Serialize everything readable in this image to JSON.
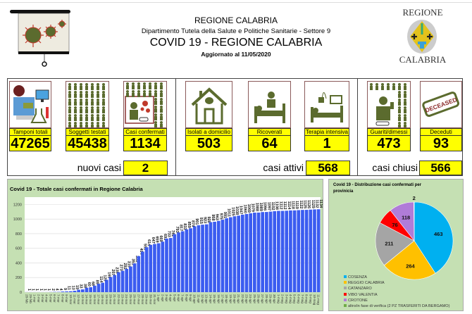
{
  "header": {
    "region": "REGIONE CALABRIA",
    "department": "Dipartimento Tutela della Salute e Politiche Sanitarie - Settore 9",
    "title": "COVID 19 - REGIONE CALABRIA",
    "updated": "Aggiornato al  11/05/2020",
    "logo_top": "REGIONE",
    "logo_bottom": "CALABRIA"
  },
  "colors": {
    "yellow": "#ffff00",
    "olive": "#5b6b2e",
    "panel": "#c5e0b3",
    "bar": "#3b5cf0"
  },
  "cards": [
    {
      "label": "Tamponi totali",
      "value": "47265",
      "icon": "lab-test-icon"
    },
    {
      "label": "Soggetti testati",
      "value": "45438",
      "icon": "people-grid-icon"
    },
    {
      "label": "Casi confermati",
      "value": "1134",
      "icon": "infected-person-icon"
    },
    {
      "label": "Isolati a domicilio",
      "value": "503",
      "icon": "house-icon"
    },
    {
      "label": "Ricoverati",
      "value": "64",
      "icon": "hospital-bed-icon"
    },
    {
      "label": "Terapia intensiva",
      "value": "1",
      "icon": "icu-icon"
    },
    {
      "label": "Guariti/dimessi",
      "value": "473",
      "icon": "recovered-person-icon"
    },
    {
      "label": "Deceduti",
      "value": "93",
      "icon": "deceased-stamp-icon"
    }
  ],
  "deceased_stamp": "DECEASED",
  "summary": {
    "new_label": "nuovi casi",
    "new_value": "2",
    "active_label": "casi attivi",
    "active_value": "568",
    "closed_label": "casi chiusi",
    "closed_value": "566"
  },
  "chart_data": [
    {
      "type": "bar",
      "title": "Covid 19 - Totale casi confermati in Regione Calabria",
      "xlabel": "",
      "ylabel": "",
      "ylim": [
        0,
        1300
      ],
      "yticks": [
        0,
        200,
        400,
        600,
        800,
        1000,
        1200
      ],
      "grid": true,
      "categories": [
        "28-feb",
        "29-feb",
        "1-mar",
        "2-mar",
        "3-mar",
        "4-mar",
        "5-mar",
        "6-mar",
        "7-mar",
        "8-mar",
        "9-mar",
        "10-mar",
        "11-mar",
        "12-mar",
        "13-mar",
        "14-mar",
        "15-mar",
        "16-mar",
        "17-mar",
        "18-mar",
        "19-mar",
        "20-mar",
        "21-mar",
        "22-mar",
        "23-mar",
        "24-mar",
        "25-mar",
        "26-mar",
        "27-mar",
        "28-mar",
        "29-mar",
        "30-mar",
        "31-mar",
        "1-apr",
        "2-apr",
        "3-apr",
        "4-apr",
        "5-apr",
        "6-apr",
        "7-apr",
        "8-apr",
        "9-apr",
        "10-apr",
        "11-apr",
        "12-apr",
        "13-apr",
        "14-apr",
        "15-apr",
        "16-apr",
        "17-apr",
        "18-apr",
        "19-apr",
        "20-apr",
        "21-apr",
        "22-apr",
        "23-apr",
        "24-apr",
        "25-apr",
        "26-apr",
        "27-apr",
        "28-apr",
        "29-apr",
        "30-apr",
        "1-mag",
        "2-mag",
        "3-mag",
        "4-mag",
        "5-mag",
        "6-mag",
        "7-mag",
        "8-mag",
        "9-mag",
        "10-mag",
        "11-mag"
      ],
      "values": [
        1,
        1,
        1,
        1,
        1,
        1,
        2,
        4,
        4,
        9,
        11,
        13,
        19,
        33,
        38,
        60,
        68,
        89,
        114,
        129,
        169,
        207,
        235,
        273,
        292,
        319,
        351,
        393,
        494,
        555,
        614,
        647,
        659,
        669,
        691,
        733,
        741,
        793,
        817,
        833,
        859,
        874,
        901,
        915,
        923,
        928,
        958,
        963,
        975,
        991,
        1011,
        1025,
        1038,
        1047,
        1060,
        1069,
        1079,
        1088,
        1089,
        1096,
        1097,
        1102,
        1108,
        1112,
        1112,
        1114,
        1118,
        1119,
        1122,
        1125,
        1126,
        1129,
        1132,
        1134
      ]
    },
    {
      "type": "pie",
      "title": "Covid 19 - Distribuzione casi confermati per provinicia",
      "legend": "bottom-left",
      "slices": [
        {
          "label": "COSENZA",
          "value": 463,
          "color": "#00b0f0"
        },
        {
          "label": "REGGIO CALABRIA",
          "value": 264,
          "color": "#ffc000"
        },
        {
          "label": "CATANZARO",
          "value": 211,
          "color": "#a5a5a5"
        },
        {
          "label": "VIBO VALENTIA",
          "value": 76,
          "color": "#ff0000"
        },
        {
          "label": "CROTONE",
          "value": 118,
          "color": "#b07cd8"
        },
        {
          "label": "altro/in fase di verifica (2 PZ TRASFERITI DA BERGAMO)",
          "value": 2,
          "color": "#70ad47"
        }
      ]
    }
  ]
}
